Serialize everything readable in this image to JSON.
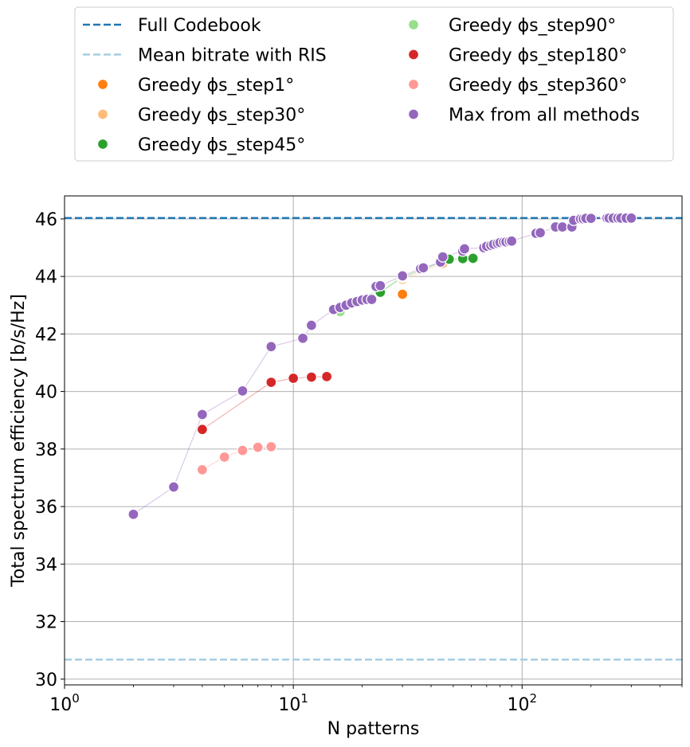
{
  "chart_data": {
    "type": "scatter",
    "xlabel": "N patterns",
    "ylabel": "Total spectrum efficiency [b/s/Hz]",
    "xscale": "log",
    "xlim": [
      1,
      500
    ],
    "ylim": [
      29.8,
      46.8
    ],
    "x_ticks": [
      {
        "value": 1,
        "base": "10",
        "exp": "0"
      },
      {
        "value": 10,
        "base": "10",
        "exp": "1"
      },
      {
        "value": 100,
        "base": "10",
        "exp": "2"
      }
    ],
    "y_ticks": [
      30,
      32,
      34,
      36,
      38,
      40,
      42,
      44,
      46
    ],
    "grid": true,
    "legend_position": "above plot, two columns",
    "reference_lines": [
      {
        "name": "Full Codebook",
        "value": 46.03,
        "color": "#1f77b4",
        "style": "dashed"
      },
      {
        "name": "Mean bitrate with RIS",
        "value": 30.68,
        "color": "#a6cee3",
        "style": "dashed"
      }
    ],
    "series": [
      {
        "name": "Greedy ϕs_step1°",
        "color": "#ff7f0e",
        "x": [
          30
        ],
        "y": [
          43.38
        ]
      },
      {
        "name": "Greedy ϕs_step30°",
        "color": "#ffbb78",
        "x": [
          30,
          45
        ],
        "y": [
          43.9,
          44.45
        ]
      },
      {
        "name": "Greedy ϕs_step45°",
        "color": "#2ca02c",
        "x": [
          24,
          30,
          48,
          55,
          61
        ],
        "y": [
          43.45,
          43.97,
          44.6,
          44.62,
          44.63
        ]
      },
      {
        "name": "Greedy ϕs_step90°",
        "color": "#98df8a",
        "x": [
          16,
          22,
          30
        ],
        "y": [
          42.78,
          43.25,
          44.0
        ]
      },
      {
        "name": "Greedy ϕs_step180°",
        "color": "#d62728",
        "x": [
          4,
          8,
          10,
          12,
          14
        ],
        "y": [
          38.68,
          40.32,
          40.46,
          40.5,
          40.52
        ]
      },
      {
        "name": "Greedy ϕs_step360°",
        "color": "#ff9896",
        "x": [
          4,
          5,
          6,
          7,
          8
        ],
        "y": [
          37.28,
          37.72,
          37.95,
          38.06,
          38.08
        ]
      },
      {
        "name": "Max from all methods",
        "color": "#9467bd",
        "x": [
          2,
          3,
          4,
          6,
          8,
          11,
          12,
          15,
          16,
          17,
          18,
          19,
          20,
          21,
          22,
          23,
          24,
          30,
          36,
          37,
          44,
          45,
          55,
          56,
          68,
          70,
          73,
          75,
          78,
          80,
          83,
          85,
          88,
          90,
          115,
          120,
          140,
          150,
          165,
          168,
          180,
          185,
          190,
          200,
          235,
          240,
          250,
          262,
          270,
          285,
          300
        ],
        "y": [
          35.73,
          36.68,
          39.2,
          40.02,
          41.56,
          41.85,
          42.3,
          42.85,
          42.92,
          43.0,
          43.08,
          43.13,
          43.18,
          43.2,
          43.2,
          43.65,
          43.68,
          44.02,
          44.27,
          44.3,
          44.5,
          44.68,
          44.88,
          44.96,
          45.0,
          45.05,
          45.08,
          45.12,
          45.15,
          45.18,
          45.2,
          45.2,
          45.22,
          45.23,
          45.5,
          45.52,
          45.72,
          45.72,
          45.72,
          45.95,
          46.0,
          46.0,
          46.02,
          46.02,
          46.03,
          46.03,
          46.03,
          46.03,
          46.03,
          46.03,
          46.03
        ]
      }
    ]
  }
}
